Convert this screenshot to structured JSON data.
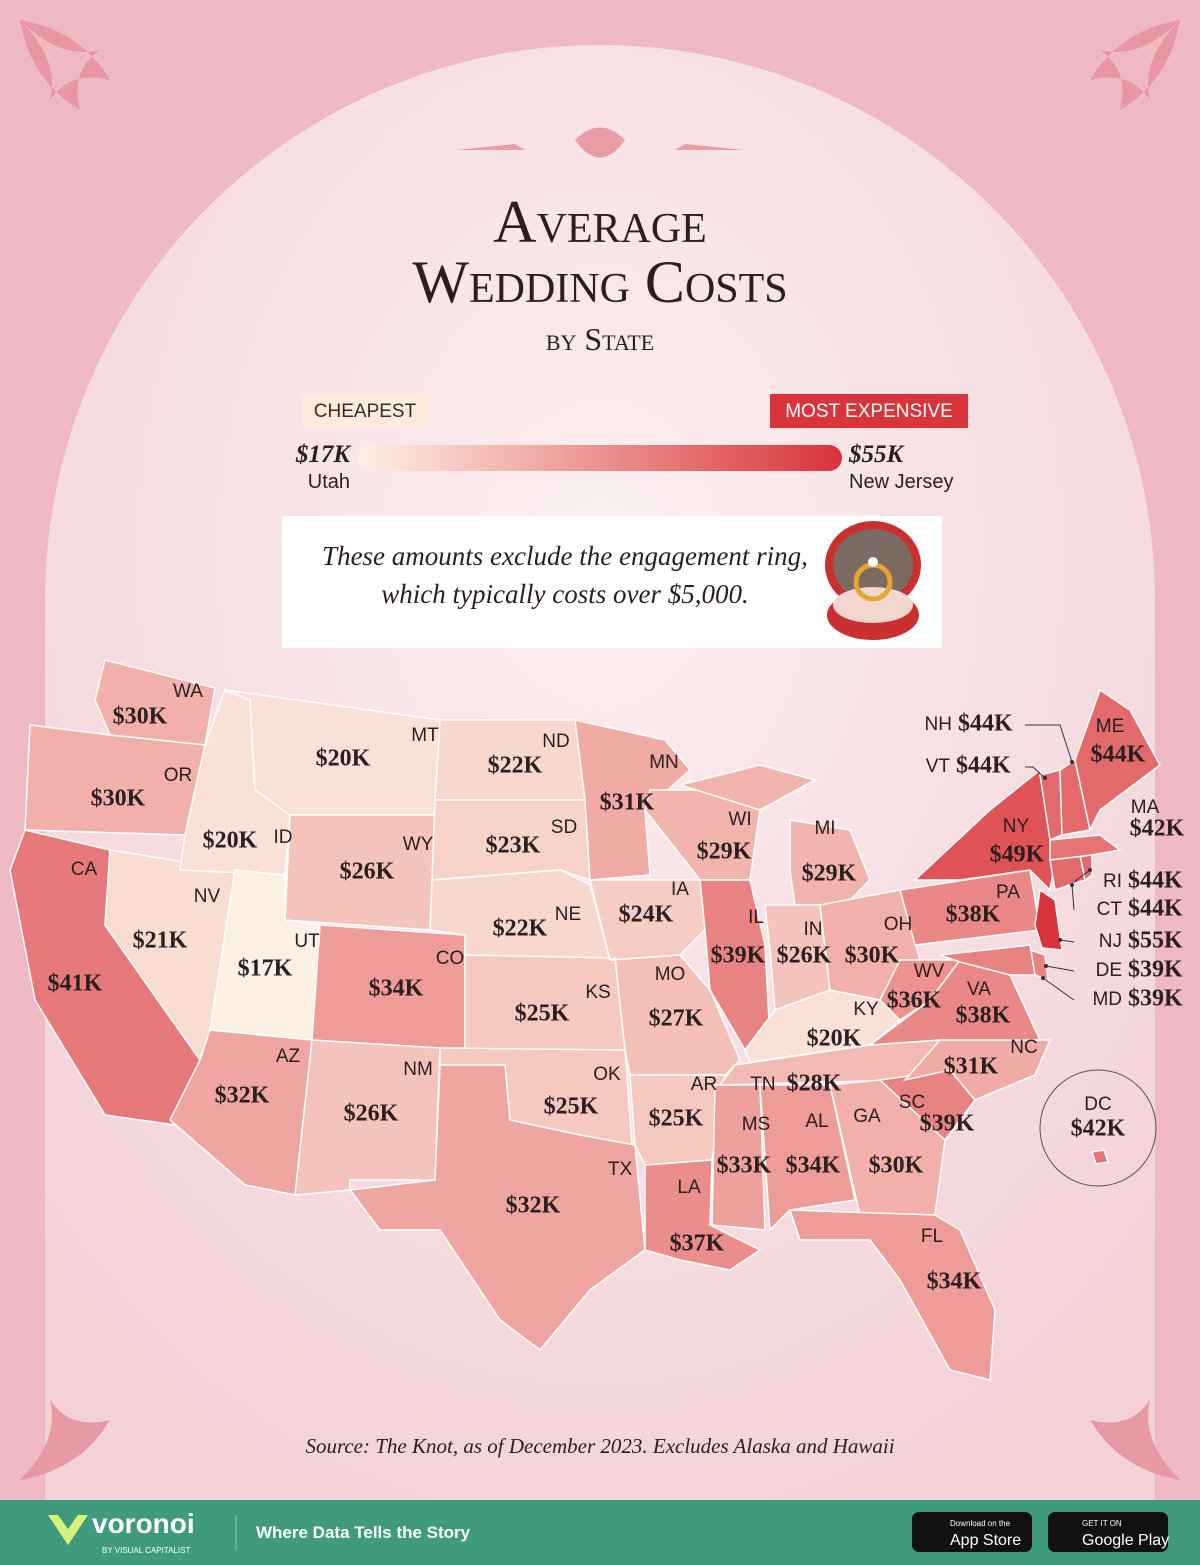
{
  "chart_data": {
    "type": "choropleth",
    "title": [
      "Average",
      "Wedding Costs"
    ],
    "subtitle": "by State",
    "legend": {
      "low": {
        "tag": "CHEAPEST",
        "value": 17,
        "label": "$17K",
        "state": "Utah"
      },
      "high": {
        "tag": "MOST EXPENSIVE",
        "value": 55,
        "label": "$55K",
        "state": "New Jersey"
      },
      "colors": [
        "#fdf0e4",
        "#d9343a"
      ]
    },
    "note": [
      "These amounts exclude the engagement ring,",
      "which typically costs over $5,000."
    ],
    "regions": [
      "WA",
      "OR",
      "CA",
      "NV",
      "ID",
      "MT",
      "WY",
      "UT",
      "CO",
      "AZ",
      "NM",
      "ND",
      "SD",
      "NE",
      "KS",
      "OK",
      "TX",
      "MN",
      "IA",
      "MO",
      "AR",
      "LA",
      "WI",
      "IL",
      "MI",
      "IN",
      "OH",
      "KY",
      "TN",
      "MS",
      "AL",
      "GA",
      "FL",
      "SC",
      "NC",
      "VA",
      "WV",
      "PA",
      "NY",
      "NJ",
      "DE",
      "MD",
      "CT",
      "RI",
      "MA",
      "VT",
      "NH",
      "ME",
      "DC"
    ],
    "values": [
      30,
      30,
      41,
      21,
      20,
      20,
      26,
      17,
      34,
      32,
      26,
      22,
      23,
      22,
      25,
      25,
      32,
      31,
      24,
      27,
      25,
      37,
      29,
      39,
      29,
      26,
      30,
      20,
      28,
      33,
      34,
      30,
      34,
      39,
      31,
      38,
      36,
      38,
      49,
      55,
      39,
      39,
      44,
      44,
      42,
      44,
      44,
      44,
      42
    ],
    "value_labels": [
      "$30K",
      "$30K",
      "$41K",
      "$21K",
      "$20K",
      "$20K",
      "$26K",
      "$17K",
      "$34K",
      "$32K",
      "$26K",
      "$22K",
      "$23K",
      "$22K",
      "$25K",
      "$25K",
      "$32K",
      "$31K",
      "$24K",
      "$27K",
      "$25K",
      "$37K",
      "$29K",
      "$39K",
      "$29K",
      "$26K",
      "$30K",
      "$20K",
      "$28K",
      "$33K",
      "$34K",
      "$30K",
      "$34K",
      "$39K",
      "$31K",
      "$38K",
      "$36K",
      "$38K",
      "$49K",
      "$55K",
      "$39K",
      "$39K",
      "$44K",
      "$44K",
      "$42K",
      "$44K",
      "$44K",
      "$44K",
      "$42K"
    ],
    "source": "Source: The Knot, as of December 2023. Excludes Alaska and Hawaii"
  },
  "footer": {
    "brand": "voronoi",
    "byline": "BY VISUAL CAPITALIST",
    "tagline": "Where Data Tells the Story",
    "apple": [
      "Download on the",
      "App Store"
    ],
    "google": [
      "GET IT ON",
      "Google Play"
    ]
  }
}
